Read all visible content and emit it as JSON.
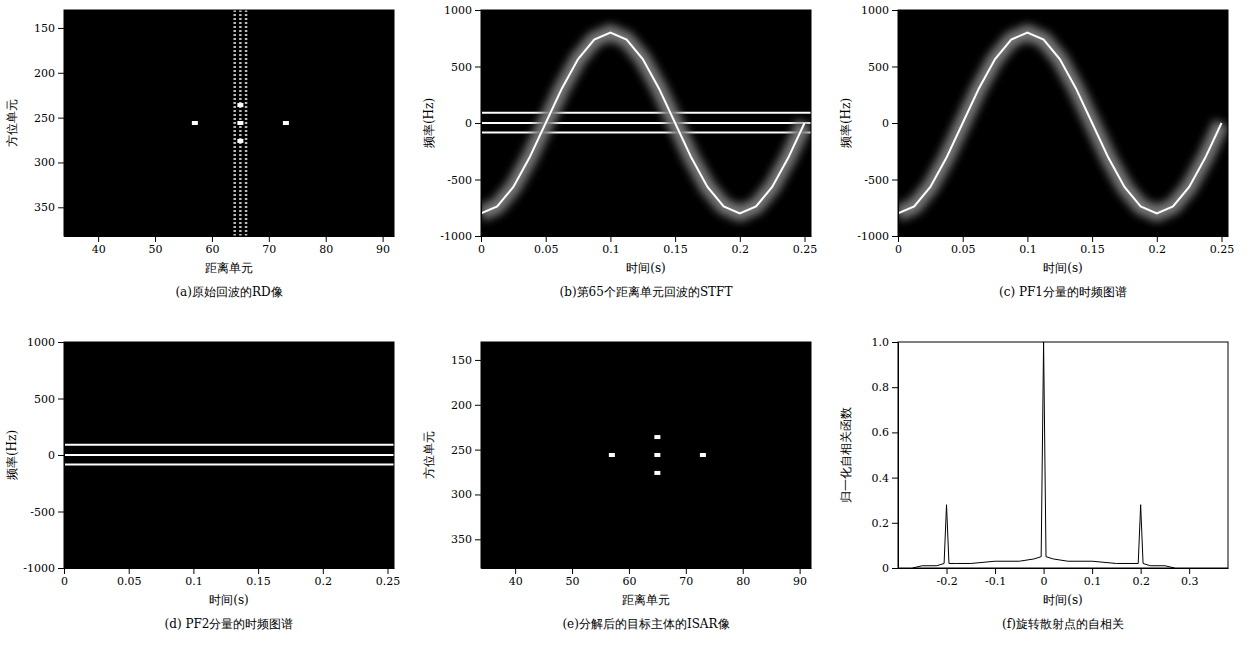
{
  "chart_data": [
    {
      "type": "image",
      "title": "(a)原始回波的RD像",
      "x_label": "距离单元",
      "y_label": "方位单元",
      "xlim": [
        34,
        92
      ],
      "xticks": [
        40,
        50,
        60,
        70,
        80,
        90
      ],
      "ylim": [
        382,
        130
      ],
      "yticks": [
        150,
        200,
        250,
        300,
        350
      ],
      "series": [
        {
          "type": "vline",
          "x": [
            64,
            65,
            66
          ],
          "color": "#bbbbbb",
          "line_style": "dotted"
        },
        {
          "type": "scatter",
          "x": [
            65,
            65,
            65,
            57,
            73
          ],
          "values": [
            236,
            256,
            276,
            256,
            256
          ],
          "color": "#ffffff",
          "marker": "square"
        }
      ]
    },
    {
      "type": "spectrogram",
      "title": "(b)第65个距离单元回波的STFT",
      "x_label": "时间(s)",
      "y_label": "频率(Hz)",
      "xlim": [
        0,
        0.255
      ],
      "xticks": [
        0,
        0.05,
        0.1,
        0.15,
        0.2,
        0.25
      ],
      "ylim": [
        -1000,
        1000
      ],
      "yticks": [
        -1000,
        -500,
        0,
        500,
        1000
      ],
      "series": [
        {
          "type": "hline",
          "values": [
            90,
            0,
            -85
          ],
          "color": "#ffffff"
        },
        {
          "type": "line",
          "color": "#ffffff",
          "x": [
            0,
            0.0125,
            0.025,
            0.0375,
            0.05,
            0.0625,
            0.075,
            0.0875,
            0.1,
            0.1125,
            0.125,
            0.1375,
            0.15,
            0.1625,
            0.175,
            0.1875,
            0.2,
            0.2125,
            0.225,
            0.2375,
            0.25
          ],
          "values": [
            -800,
            -739,
            -566,
            -306,
            0,
            306,
            566,
            739,
            800,
            739,
            566,
            306,
            0,
            -306,
            -566,
            -739,
            -800,
            -739,
            -566,
            -306,
            0
          ]
        }
      ]
    },
    {
      "type": "spectrogram",
      "title": "(c) PF1分量的时频图谱",
      "x_label": "时间(s)",
      "y_label": "频率(Hz)",
      "xlim": [
        0,
        0.255
      ],
      "xticks": [
        0,
        0.05,
        0.1,
        0.15,
        0.2,
        0.25
      ],
      "ylim": [
        -1000,
        1000
      ],
      "yticks": [
        -1000,
        -500,
        0,
        500,
        1000
      ],
      "series": [
        {
          "type": "line",
          "color": "#ffffff",
          "x": [
            0,
            0.0125,
            0.025,
            0.0375,
            0.05,
            0.0625,
            0.075,
            0.0875,
            0.1,
            0.1125,
            0.125,
            0.1375,
            0.15,
            0.1625,
            0.175,
            0.1875,
            0.2,
            0.2125,
            0.225,
            0.2375,
            0.25
          ],
          "values": [
            -800,
            -739,
            -566,
            -306,
            0,
            306,
            566,
            739,
            800,
            739,
            566,
            306,
            0,
            -306,
            -566,
            -739,
            -800,
            -739,
            -566,
            -306,
            0
          ]
        }
      ]
    },
    {
      "type": "spectrogram",
      "title": "(d) PF2分量的时频图谱",
      "x_label": "时间(s)",
      "y_label": "频率(Hz)",
      "xlim": [
        0,
        0.255
      ],
      "xticks": [
        0,
        0.05,
        0.1,
        0.15,
        0.2,
        0.25
      ],
      "ylim": [
        -1000,
        1000
      ],
      "yticks": [
        -1000,
        -500,
        0,
        500,
        1000
      ],
      "series": [
        {
          "type": "hline",
          "values": [
            90,
            0,
            -85
          ],
          "color": "#ffffff"
        }
      ]
    },
    {
      "type": "image",
      "title": "(e)分解后的目标主体的ISAR像",
      "x_label": "距离单元",
      "y_label": "方位单元",
      "xlim": [
        34,
        92
      ],
      "xticks": [
        40,
        50,
        60,
        70,
        80,
        90
      ],
      "ylim": [
        382,
        130
      ],
      "yticks": [
        150,
        200,
        250,
        300,
        350
      ],
      "series": [
        {
          "type": "scatter",
          "x": [
            65,
            65,
            65,
            57,
            73
          ],
          "values": [
            236,
            256,
            276,
            256,
            256
          ],
          "color": "#ffffff",
          "marker": "square"
        }
      ]
    },
    {
      "type": "line",
      "title": "(f)旋转散射点的自相关",
      "x_label": "时间(s)",
      "y_label": "归一化自相关函数",
      "xlim": [
        -0.3,
        0.38
      ],
      "xticks": [
        -0.2,
        -0.1,
        0,
        0.1,
        0.2,
        0.3
      ],
      "ylim": [
        0,
        1
      ],
      "yticks": [
        0,
        0.2,
        0.4,
        0.6,
        0.8,
        {
          "value": 1,
          "label": "1.0"
        }
      ],
      "series": [
        {
          "type": "line",
          "color": "#000000",
          "x": [
            -0.27,
            -0.25,
            -0.22,
            -0.205,
            -0.2,
            -0.195,
            -0.18,
            -0.15,
            -0.1,
            -0.05,
            -0.02,
            -0.005,
            0,
            0.005,
            0.02,
            0.05,
            0.1,
            0.15,
            0.18,
            0.195,
            0.2,
            0.205,
            0.22,
            0.25,
            0.27
          ],
          "values": [
            0,
            0.01,
            0.01,
            0.02,
            0.28,
            0.02,
            0.02,
            0.02,
            0.03,
            0.03,
            0.04,
            0.05,
            1.0,
            0.05,
            0.04,
            0.03,
            0.03,
            0.02,
            0.02,
            0.02,
            0.28,
            0.02,
            0.01,
            0.01,
            0
          ]
        }
      ]
    }
  ]
}
